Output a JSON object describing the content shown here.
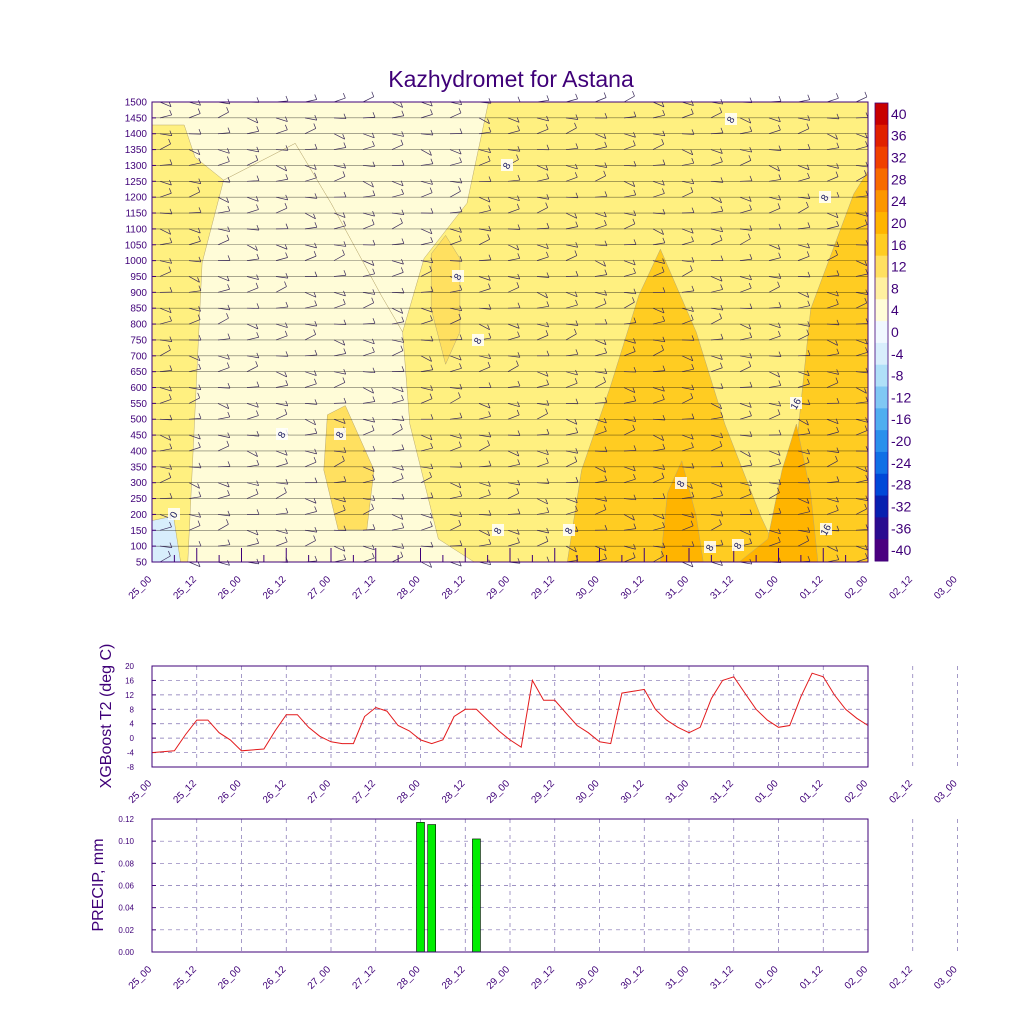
{
  "title": "Kazhydromet for Astana",
  "time_ticks": [
    "25_00",
    "25_12",
    "26_00",
    "26_12",
    "27_00",
    "27_12",
    "28_00",
    "28_12",
    "29_00",
    "29_12",
    "30_00",
    "30_12",
    "31_00",
    "31_12",
    "01_00",
    "01_12",
    "02_00",
    "02_12",
    "03_00"
  ],
  "colors": {
    "axis": "#3f0078",
    "temp_line": "#e31a1c",
    "precip_bar": "#00ee00",
    "grid": "#7f6fb0"
  },
  "chart_data": [
    {
      "type": "heatmap",
      "title": "Kazhydromet for Astana",
      "y_ticks": [
        50,
        100,
        150,
        200,
        250,
        300,
        350,
        400,
        450,
        500,
        550,
        600,
        650,
        700,
        750,
        800,
        850,
        900,
        950,
        1000,
        1050,
        1100,
        1150,
        1200,
        1250,
        1300,
        1350,
        1400,
        1450,
        1500
      ],
      "ylim": [
        50,
        1500
      ],
      "colorbar": {
        "labels": [
          "40",
          "36",
          "32",
          "28",
          "24",
          "20",
          "16",
          "12",
          "8",
          "4",
          "0",
          "-4",
          "-8",
          "-12",
          "-16",
          "-20",
          "-24",
          "-28",
          "-32",
          "-36",
          "-40"
        ],
        "colors": [
          "#c80000",
          "#e12000",
          "#f04000",
          "#f86a00",
          "#fc9600",
          "#ffb400",
          "#ffcc22",
          "#ffe060",
          "#fff0a0",
          "#fffcd8",
          "#f0f8ff",
          "#d8eefc",
          "#b0e0f8",
          "#80c8f4",
          "#50aef0",
          "#2a90ec",
          "#1070e6",
          "#0048d8",
          "#0820b0",
          "#2a0c90",
          "#4a0080"
        ]
      },
      "contour_labels": [
        "0",
        "8",
        "8",
        "8",
        "8",
        "8",
        "8",
        "8",
        "8",
        "8",
        "8",
        "8",
        "8",
        "16",
        "16",
        "16",
        "16"
      ]
    },
    {
      "type": "line",
      "ylabel": "XGBoost T2 (deg C)",
      "y_ticks": [
        "20",
        "16",
        "12",
        "8",
        "4",
        "0",
        "-4",
        "-8"
      ],
      "ylim": [
        -8,
        20
      ],
      "x_hours": [
        0,
        6,
        9,
        12,
        15,
        18,
        21,
        24,
        30,
        33,
        36,
        39,
        42,
        45,
        48,
        51,
        54,
        57,
        60,
        63,
        66,
        69,
        72,
        75,
        78,
        81,
        84,
        87,
        90,
        93,
        96,
        99,
        102,
        105,
        108,
        111,
        114,
        117,
        120,
        123,
        126,
        129,
        132,
        135,
        138,
        141,
        144,
        147,
        150,
        153,
        156,
        159,
        162,
        165,
        168,
        171,
        174,
        177,
        180,
        183,
        186,
        189,
        192
      ],
      "values": [
        -4,
        -3.5,
        1,
        5,
        5,
        1.5,
        -0.5,
        -3.5,
        -3,
        2,
        6.5,
        6.5,
        3,
        0.5,
        -1,
        -1.5,
        -1.5,
        6,
        8.5,
        7.5,
        3.5,
        2,
        -0.5,
        -1.5,
        -0.5,
        6,
        8,
        8,
        5,
        2,
        -0.5,
        -2.5,
        16,
        10.5,
        10.5,
        7,
        3.5,
        1.5,
        -1,
        -1.5,
        12.5,
        13,
        13.5,
        8,
        5,
        3,
        1.5,
        3,
        11,
        16,
        17,
        12.5,
        8,
        5,
        3,
        3.5,
        11.5,
        18,
        17,
        12,
        8,
        5.5,
        3.5
      ]
    },
    {
      "type": "bar",
      "ylabel": "PRECIP, mm",
      "y_ticks": [
        "0.12",
        "0.10",
        "0.08",
        "0.06",
        "0.04",
        "0.02",
        "0.00"
      ],
      "ylim": [
        0,
        0.12
      ],
      "x_hours": [
        72,
        75,
        87
      ],
      "values": [
        0.117,
        0.115,
        0.102
      ]
    }
  ]
}
